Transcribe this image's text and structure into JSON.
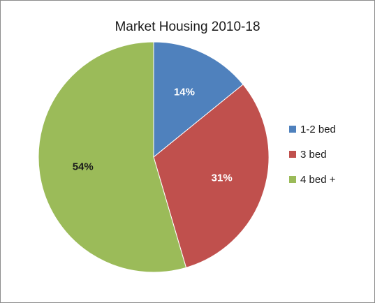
{
  "chart_data": {
    "type": "pie",
    "title": "Market Housing 2010-18",
    "slices": [
      {
        "label": "1-2 bed",
        "value": 14,
        "display": "14%",
        "color": "#4f81bd",
        "label_color": "#ffffff"
      },
      {
        "label": "3 bed",
        "value": 31,
        "display": "31%",
        "color": "#c0504d",
        "label_color": "#ffffff"
      },
      {
        "label": "4 bed +",
        "value": 54,
        "display": "54%",
        "color": "#9bbb59",
        "label_color": "#1a1a1a"
      }
    ],
    "legend_position": "right"
  }
}
